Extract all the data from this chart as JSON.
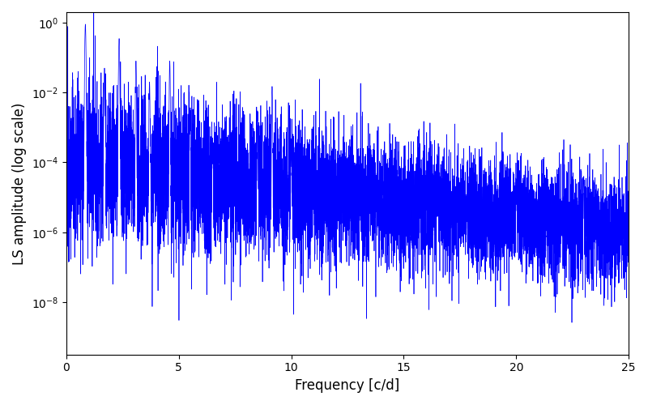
{
  "xlabel": "Frequency [c/d]",
  "ylabel": "LS amplitude (log scale)",
  "xlim": [
    0,
    25
  ],
  "ylim_log": [
    -9.5,
    0.3
  ],
  "line_color": "#0000FF",
  "line_width": 0.5,
  "yscale": "log",
  "seed": 12345,
  "n_points": 8000,
  "freq_max": 25.0,
  "background_color": "#ffffff",
  "figsize": [
    8.0,
    5.0
  ],
  "dpi": 100
}
